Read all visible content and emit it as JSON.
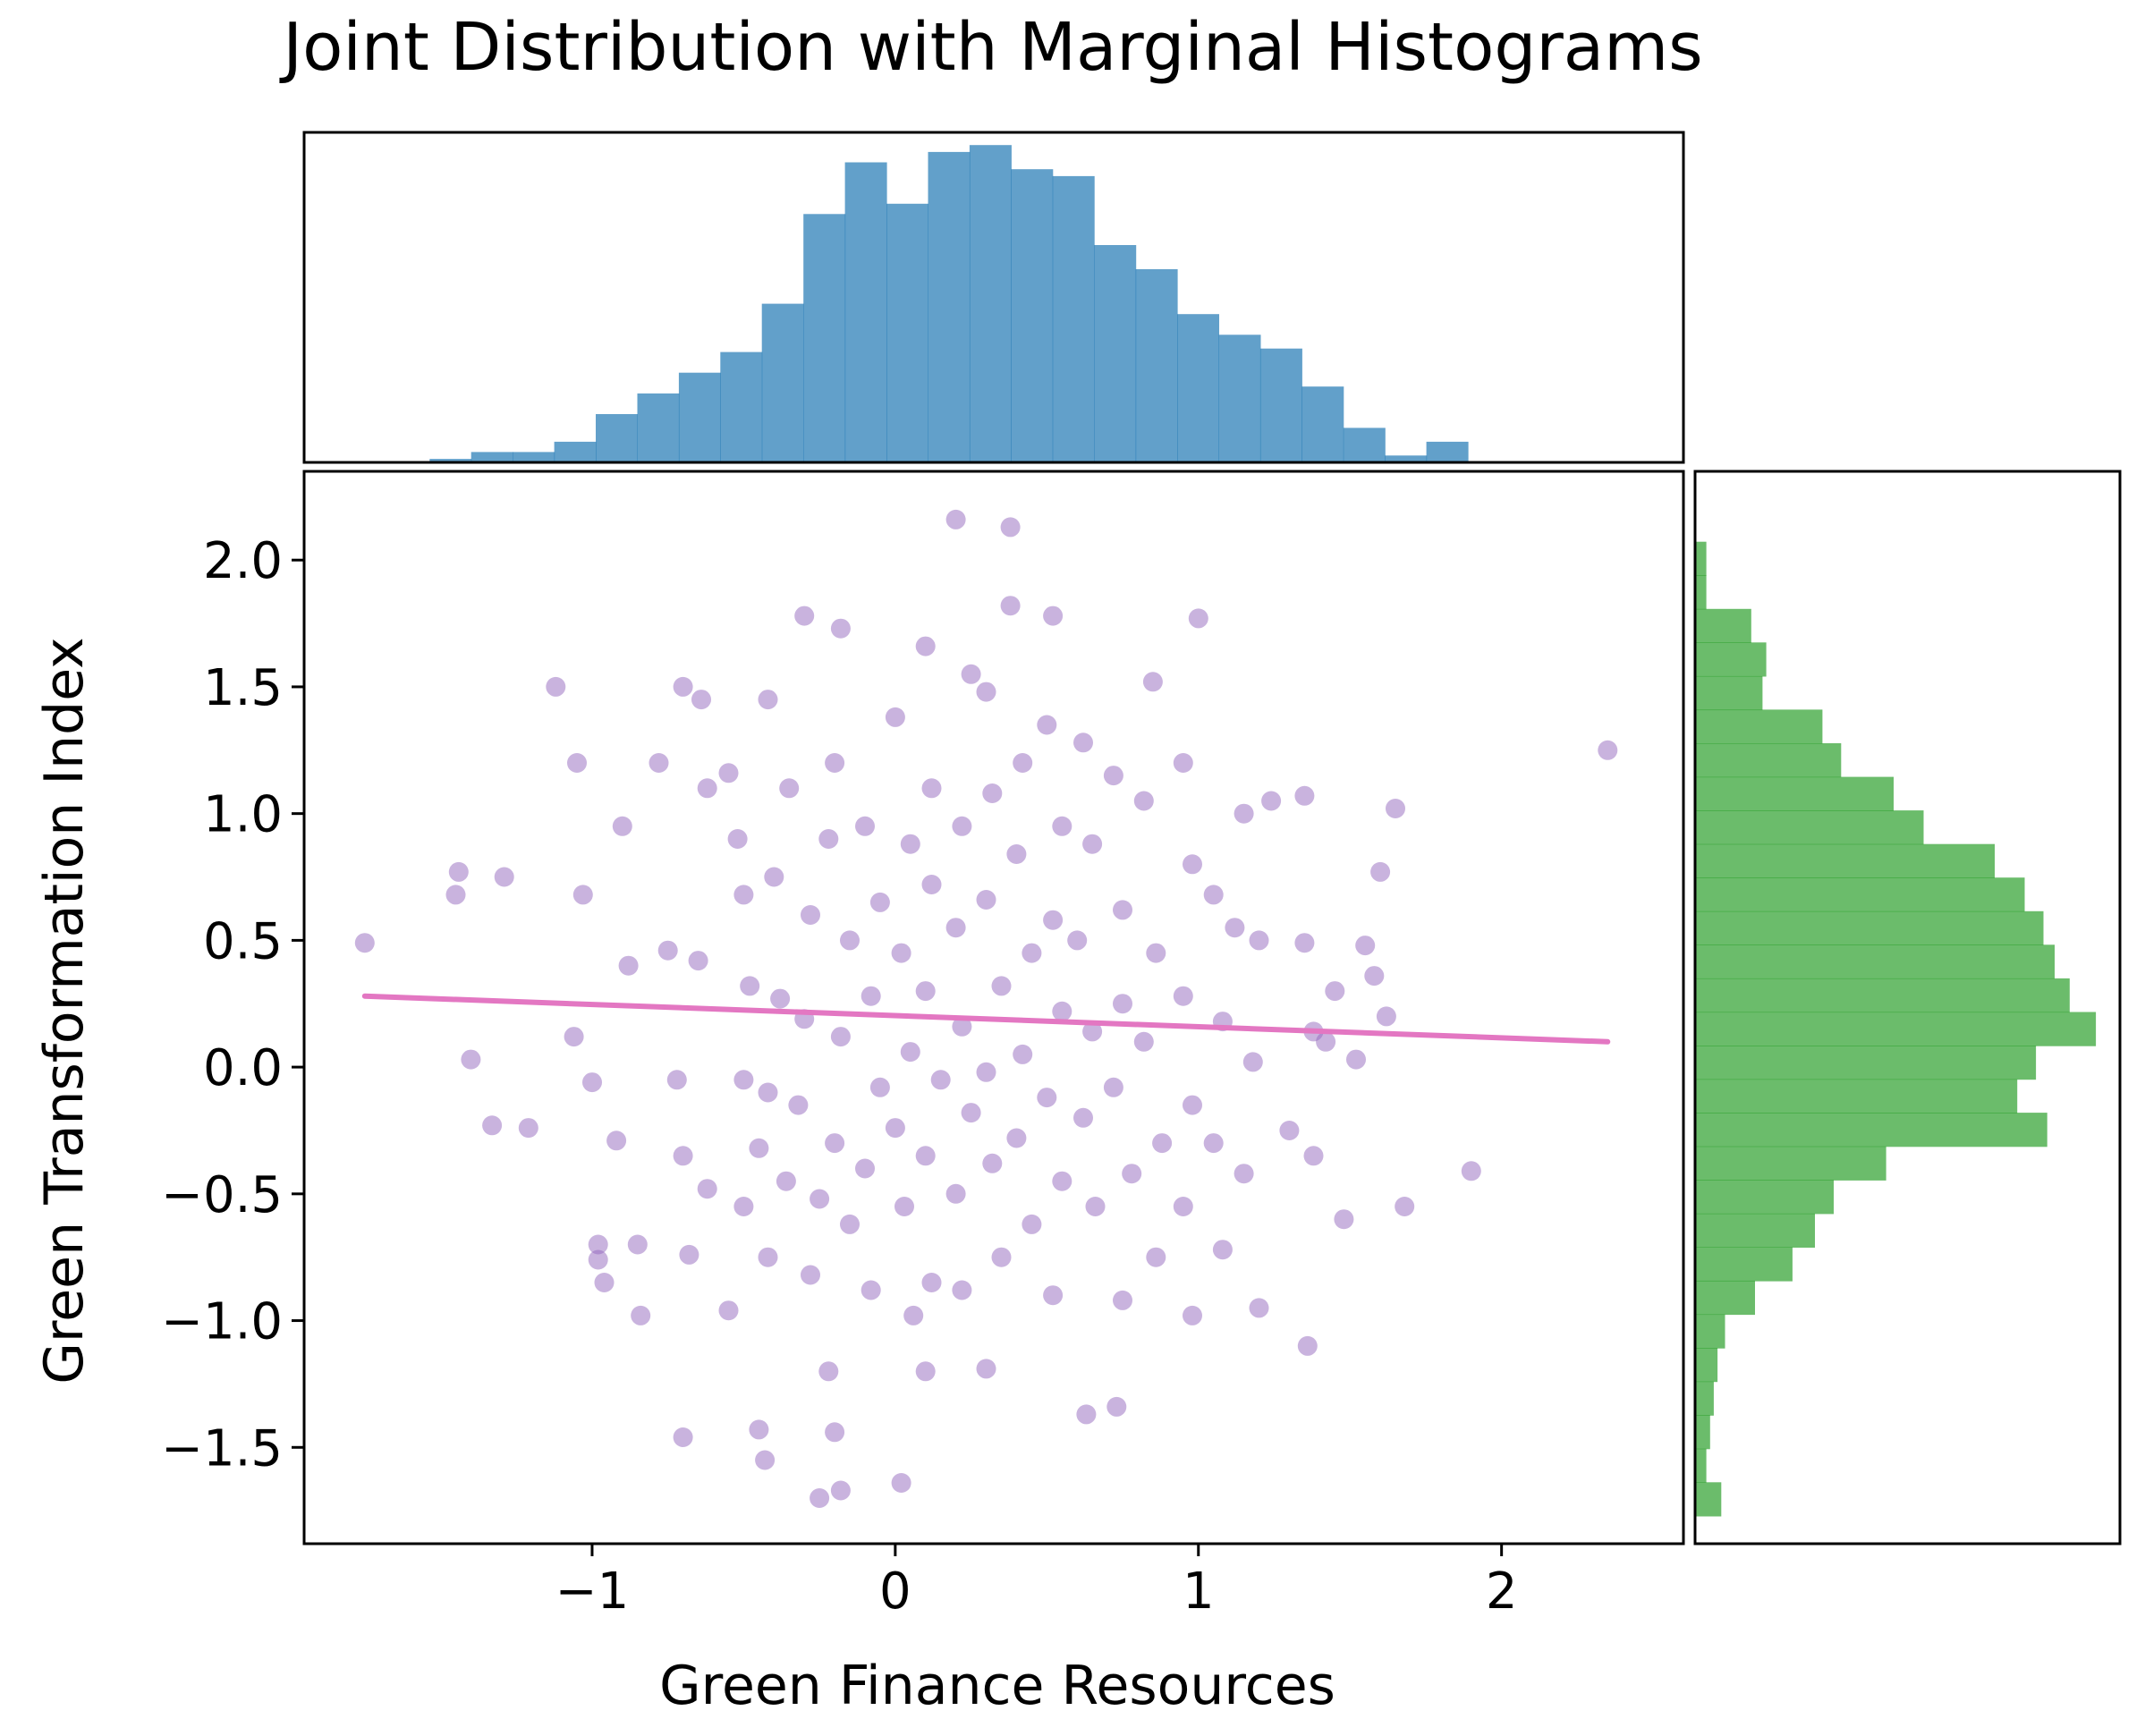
{
  "chart_data": {
    "type": "scatter",
    "title": "Joint Distribution with Marginal Histograms",
    "xlabel": "Green Finance Resources",
    "ylabel": "Green Transformation Index",
    "xlim": [
      -1.95,
      2.6
    ],
    "ylim": [
      -1.88,
      2.35
    ],
    "x_ticks": [
      -1,
      0,
      1,
      2
    ],
    "x_tick_labels": [
      "−1",
      "0",
      "1",
      "2"
    ],
    "y_ticks": [
      -1.5,
      -1.0,
      -0.5,
      0.0,
      0.5,
      1.0,
      1.5,
      2.0
    ],
    "y_tick_labels": [
      "−1.5",
      "−1.0",
      "−0.5",
      "0.0",
      "0.5",
      "1.0",
      "1.5",
      "2.0"
    ],
    "grid": false,
    "legend": "none",
    "colors": {
      "points": "#9467bd",
      "regression": "#e377c2",
      "x_hist": "#1f77b4",
      "y_hist": "#2ca02c"
    },
    "point_opacity": 0.5,
    "sample_points": [
      [
        -1.75,
        0.49
      ],
      [
        -1.44,
        0.77
      ],
      [
        -1.45,
        0.68
      ],
      [
        -1.29,
        0.75
      ],
      [
        -1.4,
        0.03
      ],
      [
        -1.33,
        -0.23
      ],
      [
        -1.21,
        -0.24
      ],
      [
        -1.12,
        1.5
      ],
      [
        -1.05,
        1.2
      ],
      [
        -1.03,
        0.68
      ],
      [
        -1.06,
        0.12
      ],
      [
        -1.0,
        -0.06
      ],
      [
        -0.98,
        -0.7
      ],
      [
        -0.98,
        -0.76
      ],
      [
        -0.96,
        -0.85
      ],
      [
        -0.9,
        0.95
      ],
      [
        -0.88,
        0.4
      ],
      [
        -0.92,
        -0.29
      ],
      [
        -0.85,
        -0.7
      ],
      [
        -0.84,
        -0.98
      ],
      [
        -0.78,
        1.2
      ],
      [
        -0.75,
        0.46
      ],
      [
        -0.72,
        -0.05
      ],
      [
        -0.7,
        -0.35
      ],
      [
        -0.68,
        -0.74
      ],
      [
        -0.7,
        1.5
      ],
      [
        -0.64,
        1.45
      ],
      [
        -0.62,
        1.1
      ],
      [
        -0.65,
        0.42
      ],
      [
        -0.62,
        -0.48
      ],
      [
        -0.7,
        -1.46
      ],
      [
        -0.55,
        1.16
      ],
      [
        -0.52,
        0.9
      ],
      [
        -0.5,
        0.68
      ],
      [
        -0.48,
        0.32
      ],
      [
        -0.5,
        -0.05
      ],
      [
        -0.45,
        -0.32
      ],
      [
        -0.5,
        -0.55
      ],
      [
        -0.55,
        -0.96
      ],
      [
        -0.42,
        1.45
      ],
      [
        -0.4,
        0.75
      ],
      [
        -0.38,
        0.27
      ],
      [
        -0.42,
        -0.1
      ],
      [
        -0.36,
        -0.45
      ],
      [
        -0.42,
        -0.75
      ],
      [
        -0.45,
        -1.43
      ],
      [
        -0.43,
        -1.55
      ],
      [
        -0.3,
        1.78
      ],
      [
        -0.35,
        1.1
      ],
      [
        -0.28,
        0.6
      ],
      [
        -0.3,
        0.19
      ],
      [
        -0.32,
        -0.15
      ],
      [
        -0.25,
        -0.52
      ],
      [
        -0.28,
        -0.82
      ],
      [
        -0.22,
        -1.2
      ],
      [
        -0.18,
        1.73
      ],
      [
        -0.2,
        1.2
      ],
      [
        -0.22,
        0.9
      ],
      [
        -0.15,
        0.5
      ],
      [
        -0.18,
        0.12
      ],
      [
        -0.2,
        -0.3
      ],
      [
        -0.15,
        -0.62
      ],
      [
        -0.2,
        -1.44
      ],
      [
        -0.25,
        -1.7
      ],
      [
        -0.18,
        -1.67
      ],
      [
        -0.1,
        0.95
      ],
      [
        -0.05,
        0.65
      ],
      [
        -0.08,
        0.28
      ],
      [
        -0.05,
        -0.08
      ],
      [
        -0.1,
        -0.4
      ],
      [
        -0.08,
        -0.88
      ],
      [
        0.02,
        -1.64
      ],
      [
        0.0,
        1.38
      ],
      [
        0.05,
        0.88
      ],
      [
        0.02,
        0.45
      ],
      [
        0.05,
        0.06
      ],
      [
        0.0,
        -0.24
      ],
      [
        0.03,
        -0.55
      ],
      [
        0.06,
        -0.98
      ],
      [
        0.1,
        1.66
      ],
      [
        0.12,
        1.1
      ],
      [
        0.12,
        0.72
      ],
      [
        0.1,
        0.3
      ],
      [
        0.15,
        -0.05
      ],
      [
        0.1,
        -0.35
      ],
      [
        0.12,
        -0.85
      ],
      [
        0.1,
        -1.2
      ],
      [
        0.2,
        2.16
      ],
      [
        0.25,
        1.55
      ],
      [
        0.22,
        0.95
      ],
      [
        0.2,
        0.55
      ],
      [
        0.22,
        0.16
      ],
      [
        0.25,
        -0.18
      ],
      [
        0.2,
        -0.5
      ],
      [
        0.22,
        -0.88
      ],
      [
        0.3,
        1.48
      ],
      [
        0.32,
        1.08
      ],
      [
        0.3,
        0.66
      ],
      [
        0.35,
        0.32
      ],
      [
        0.3,
        -0.02
      ],
      [
        0.32,
        -0.38
      ],
      [
        0.35,
        -0.75
      ],
      [
        0.3,
        -1.19
      ],
      [
        0.38,
        2.13
      ],
      [
        0.38,
        1.82
      ],
      [
        0.42,
        1.2
      ],
      [
        0.4,
        0.84
      ],
      [
        0.45,
        0.45
      ],
      [
        0.42,
        0.05
      ],
      [
        0.4,
        -0.28
      ],
      [
        0.45,
        -0.62
      ],
      [
        0.52,
        1.78
      ],
      [
        0.5,
        1.35
      ],
      [
        0.55,
        0.95
      ],
      [
        0.52,
        0.58
      ],
      [
        0.55,
        0.22
      ],
      [
        0.5,
        -0.12
      ],
      [
        0.55,
        -0.45
      ],
      [
        0.52,
        -0.9
      ],
      [
        0.62,
        1.28
      ],
      [
        0.65,
        0.88
      ],
      [
        0.6,
        0.5
      ],
      [
        0.65,
        0.14
      ],
      [
        0.62,
        -0.2
      ],
      [
        0.66,
        -0.55
      ],
      [
        0.63,
        -1.37
      ],
      [
        0.73,
        -1.34
      ],
      [
        0.72,
        1.15
      ],
      [
        0.75,
        0.62
      ],
      [
        0.75,
        0.25
      ],
      [
        0.72,
        -0.08
      ],
      [
        0.78,
        -0.42
      ],
      [
        0.75,
        -0.92
      ],
      [
        0.85,
        1.52
      ],
      [
        0.82,
        1.05
      ],
      [
        0.86,
        0.45
      ],
      [
        0.82,
        0.1
      ],
      [
        0.88,
        -0.3
      ],
      [
        0.86,
        -0.75
      ],
      [
        0.95,
        1.2
      ],
      [
        0.98,
        0.8
      ],
      [
        0.95,
        0.28
      ],
      [
        0.98,
        -0.15
      ],
      [
        0.95,
        -0.55
      ],
      [
        0.98,
        -0.98
      ],
      [
        1.0,
        1.77
      ],
      [
        1.05,
        0.68
      ],
      [
        1.08,
        0.18
      ],
      [
        1.05,
        -0.3
      ],
      [
        1.08,
        -0.72
      ],
      [
        1.15,
        1.0
      ],
      [
        1.12,
        0.55
      ],
      [
        1.18,
        0.02
      ],
      [
        1.15,
        -0.42
      ],
      [
        1.2,
        -0.95
      ],
      [
        1.24,
        1.05
      ],
      [
        1.2,
        0.5
      ],
      [
        1.3,
        -0.25
      ],
      [
        1.35,
        0.49
      ],
      [
        1.35,
        1.07
      ],
      [
        1.38,
        -0.35
      ],
      [
        1.36,
        -1.1
      ],
      [
        1.38,
        0.14
      ],
      [
        1.42,
        0.1
      ],
      [
        1.52,
        0.03
      ],
      [
        1.48,
        -0.6
      ],
      [
        1.55,
        0.48
      ],
      [
        1.6,
        0.77
      ],
      [
        1.62,
        0.2
      ],
      [
        1.68,
        -0.55
      ],
      [
        1.65,
        1.02
      ],
      [
        1.9,
        -0.41
      ],
      [
        2.35,
        1.25
      ],
      [
        1.58,
        0.36
      ],
      [
        1.45,
        0.3
      ]
    ],
    "regression": {
      "x": [
        -1.75,
        2.35
      ],
      "y": [
        0.28,
        0.1
      ]
    },
    "x_hist": {
      "bin_width": 0.137,
      "bin_starts": [
        -1.81,
        -1.673,
        -1.536,
        -1.399,
        -1.262,
        -1.125,
        -0.988,
        -0.851,
        -0.714,
        -0.577,
        -0.44,
        -0.303,
        -0.166,
        -0.029,
        0.108,
        0.245,
        0.382,
        0.519,
        0.656,
        0.793,
        0.93,
        1.067,
        1.204,
        1.341,
        1.478,
        1.615,
        1.752,
        1.889,
        2.026,
        2.163,
        2.3
      ],
      "counts": [
        0,
        0,
        1,
        3,
        3,
        6,
        14,
        20,
        26,
        32,
        46,
        72,
        87,
        75,
        90,
        92,
        85,
        83,
        63,
        56,
        43,
        37,
        33,
        22,
        10,
        2,
        6,
        0,
        0,
        0,
        0
      ]
    },
    "y_hist": {
      "bin_width": 0.1325,
      "bin_starts": [
        -1.77,
        -1.6375,
        -1.505,
        -1.3725,
        -1.24,
        -1.1075,
        -0.975,
        -0.8425,
        -0.71,
        -0.5775,
        -0.445,
        -0.3125,
        -0.18,
        -0.0475,
        0.085,
        0.2175,
        0.35,
        0.4825,
        0.615,
        0.7475,
        0.88,
        1.0125,
        1.145,
        1.2775,
        1.41,
        1.5425,
        1.675,
        1.8075,
        1.94,
        2.0725
      ],
      "counts": [
        7,
        3,
        4,
        5,
        6,
        8,
        16,
        26,
        32,
        37,
        51,
        94,
        86,
        91,
        107,
        100,
        96,
        93,
        88,
        80,
        61,
        53,
        39,
        34,
        18,
        19,
        15,
        3,
        3,
        0
      ]
    }
  }
}
